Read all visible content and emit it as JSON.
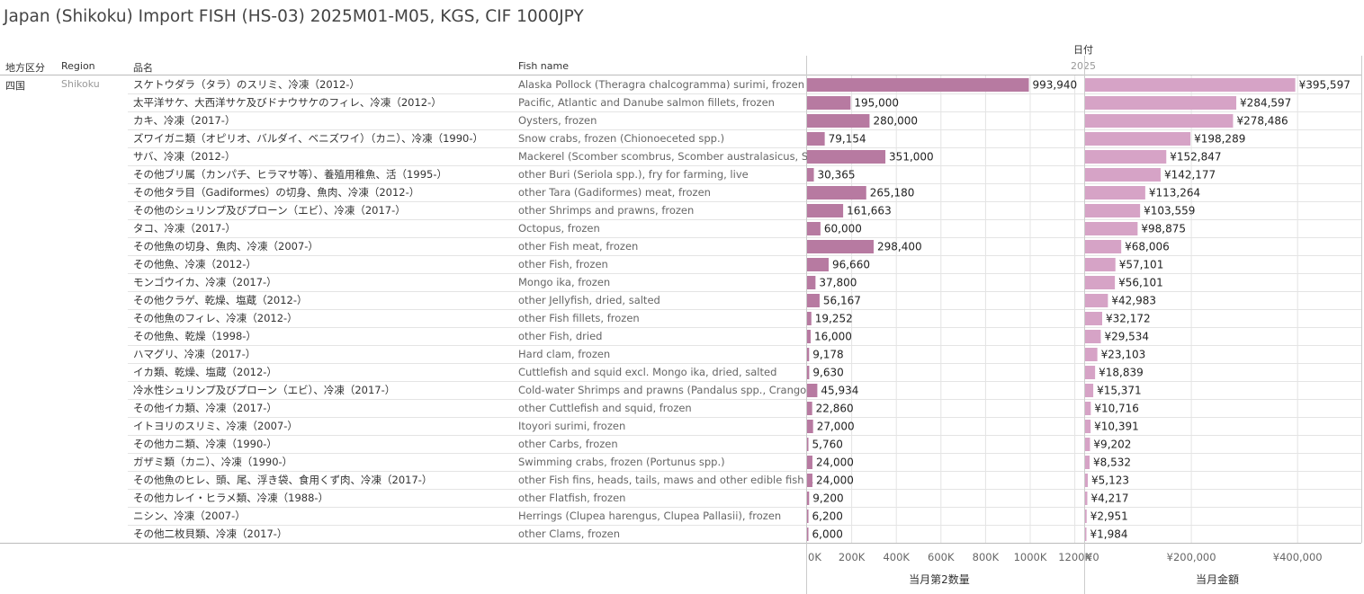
{
  "title": "Japan (Shikoku) Import FISH (HS-03) 2025M01-M05, KGS, CIF 1000JPY",
  "header": {
    "date_group": "日付",
    "year": "2025",
    "col_area": "地方区分",
    "col_region": "Region",
    "col_jp": "品名",
    "col_en": "Fish name"
  },
  "area": "四国",
  "region": "Shikoku",
  "colors": {
    "qty_bar": "#b77aa1",
    "amt_bar": "#d6a3c6",
    "grid": "#e4e4e4",
    "axis": "#cccccc"
  },
  "chart_data": {
    "type": "bar",
    "orientation": "horizontal",
    "categories_jp": [
      "スケトウダラ（タラ）のスリミ、冷凍（2012-）",
      "太平洋サケ、大西洋サケ及びドナウサケのフィレ、冷凍（2012-）",
      "カキ、冷凍（2017-）",
      "ズワイガニ類（オピリオ、バルダイ、ベニズワイ）（カニ）、冷凍（1990-）",
      "サバ、冷凍（2012-）",
      "その他ブリ属（カンパチ、ヒラマサ等）、養殖用稚魚、活（1995-）",
      "その他タラ目（Gadiformes）の切身、魚肉、冷凍（2012-）",
      "その他のシュリンプ及びプローン（エビ）、冷凍（2017-）",
      "タコ、冷凍（2017-）",
      "その他魚の切身、魚肉、冷凍（2007-）",
      "その他魚、冷凍（2012-）",
      "モンゴウイカ、冷凍（2017-）",
      "その他クラゲ、乾燥、塩蔵（2012-）",
      "その他魚のフィレ、冷凍（2012-）",
      "その他魚、乾燥（1998-）",
      "ハマグリ、冷凍（2017-）",
      "イカ類、乾燥、塩蔵（2012-）",
      "冷水性シュリンプ及びプローン（エビ）、冷凍（2017-）",
      "その他イカ類、冷凍（2017-）",
      "イトヨリのスリミ、冷凍（2007-）",
      "その他カニ類、冷凍（1990-）",
      "ガザミ類（カニ）、冷凍（1990-）",
      "その他魚のヒレ、頭、尾、浮き袋、食用くず肉、冷凍（2017-）",
      "その他カレイ・ヒラメ類、冷凍（1988-）",
      "ニシン、冷凍（2007-）",
      "その他二枚貝類、冷凍（2017-）"
    ],
    "categories_en": [
      "Alaska Pollock (Theragra chalcogramma) surimi, frozen",
      "Pacific, Atlantic and Danube salmon fillets, frozen",
      "Oysters, frozen",
      "Snow crabs, frozen (Chionoeceted spp.)",
      "Mackerel (Scomber scombrus, Scomber australasicus, S..",
      "other Buri (Seriola spp.), fry for farming, live",
      "other Tara (Gadiformes) meat, frozen",
      "other Shrimps and prawns, frozen",
      "Octopus, frozen",
      "other Fish meat, frozen",
      "other Fish, frozen",
      "Mongo ika, frozen",
      "other Jellyfish, dried, salted",
      "other Fish fillets, frozen",
      "other Fish, dried",
      "Hard clam, frozen",
      "Cuttlefish and squid excl. Mongo ika, dried, salted",
      "Cold-water Shrimps and prawns (Pandalus spp., Crango..",
      "other Cuttlefish and squid, frozen",
      "Itoyori surimi, frozen",
      "other Carbs, frozen",
      "Swimming crabs, frozen (Portunus spp.)",
      "other Fish fins, heads, tails, maws and other edible fish ..",
      "other Flatfish, frozen",
      "Herrings (Clupea harengus, Clupea Pallasii), frozen",
      "other Clams, frozen"
    ],
    "series": [
      {
        "name": "当月第2数量",
        "values": [
          993940,
          195000,
          280000,
          79154,
          351000,
          30365,
          265180,
          161663,
          60000,
          298400,
          96660,
          37800,
          56167,
          19252,
          16000,
          9178,
          9630,
          45934,
          22860,
          27000,
          5760,
          24000,
          24000,
          9200,
          6200,
          6000
        ],
        "labels": [
          "993,940",
          "195,000",
          "280,000",
          "79,154",
          "351,000",
          "30,365",
          "265,180",
          "161,663",
          "60,000",
          "298,400",
          "96,660",
          "37,800",
          "56,167",
          "19,252",
          "16,000",
          "9,178",
          "9,630",
          "45,934",
          "22,860",
          "27,000",
          "5,760",
          "24,000",
          "24,000",
          "9,200",
          "6,200",
          "6,000"
        ],
        "xlim": [
          0,
          1250000
        ],
        "ticks": [
          0,
          200000,
          400000,
          600000,
          800000,
          1000000,
          1200000
        ],
        "tick_labels": [
          "0K",
          "200K",
          "400K",
          "600K",
          "800K",
          "1000K",
          "1200K"
        ]
      },
      {
        "name": "当月金額",
        "values": [
          395597,
          284597,
          278486,
          198289,
          152847,
          142177,
          113264,
          103559,
          98875,
          68006,
          57101,
          56101,
          42983,
          32172,
          29534,
          23103,
          18839,
          15371,
          10716,
          10391,
          9202,
          8532,
          5123,
          4217,
          2951,
          1984
        ],
        "labels": [
          "¥395,597",
          "¥284,597",
          "¥278,486",
          "¥198,289",
          "¥152,847",
          "¥142,177",
          "¥113,264",
          "¥103,559",
          "¥98,875",
          "¥68,006",
          "¥57,101",
          "¥56,101",
          "¥42,983",
          "¥32,172",
          "¥29,534",
          "¥23,103",
          "¥18,839",
          "¥15,371",
          "¥10,716",
          "¥10,391",
          "¥9,202",
          "¥8,532",
          "¥5,123",
          "¥4,217",
          "¥2,951",
          "¥1,984"
        ],
        "xlim": [
          0,
          525000
        ],
        "ticks": [
          0,
          200000,
          400000
        ],
        "tick_labels": [
          "¥0",
          "¥200,000",
          "¥400,000"
        ]
      }
    ],
    "xlabels": [
      "当月第2数量",
      "当月金額"
    ],
    "grid": true,
    "legend": "none"
  }
}
